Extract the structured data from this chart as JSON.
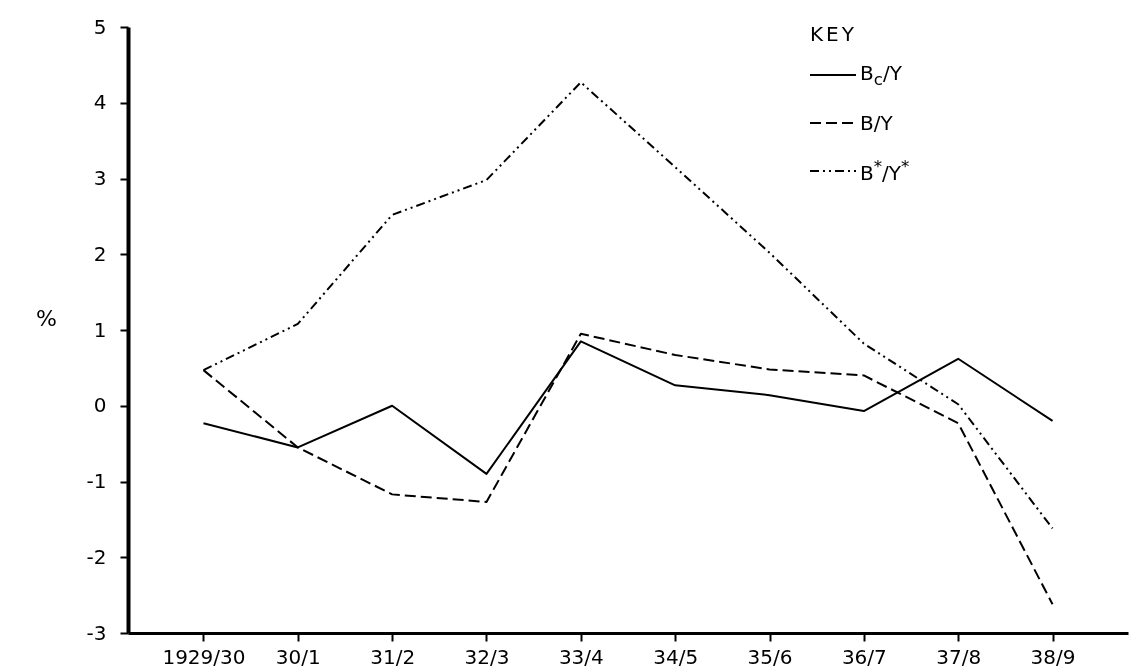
{
  "chart_data": {
    "type": "line",
    "ylabel": "%",
    "legend_title": "KEY",
    "legend": "top right",
    "categories": [
      "1929/30",
      "30/1",
      "31/2",
      "32/3",
      "33/4",
      "34/5",
      "35/6",
      "36/7",
      "37/8",
      "38/9"
    ],
    "ylim": [
      -3,
      5
    ],
    "yticks": [
      -3,
      -2,
      -1,
      0,
      1,
      2,
      3,
      4,
      5
    ],
    "series": [
      {
        "name": "B$_{c}$/Y",
        "color": "#000000",
        "line_style": "solid",
        "values": [
          -0.23,
          -0.55,
          0.0,
          -0.9,
          0.85,
          0.27,
          0.14,
          -0.07,
          0.62,
          -0.2
        ]
      },
      {
        "name": "B/Y",
        "color": "#000000",
        "line_style": "dashed",
        "values": [
          0.47,
          -0.55,
          -1.17,
          -1.27,
          0.95,
          0.67,
          0.48,
          0.4,
          -0.23,
          -2.62
        ]
      },
      {
        "name": "B$^{*}$/Y$^{*}$",
        "color": "#000000",
        "line_style": "dotted",
        "values": [
          0.47,
          1.08,
          2.52,
          2.98,
          4.27,
          3.15,
          2.02,
          0.82,
          0.02,
          -1.62
        ]
      }
    ]
  }
}
